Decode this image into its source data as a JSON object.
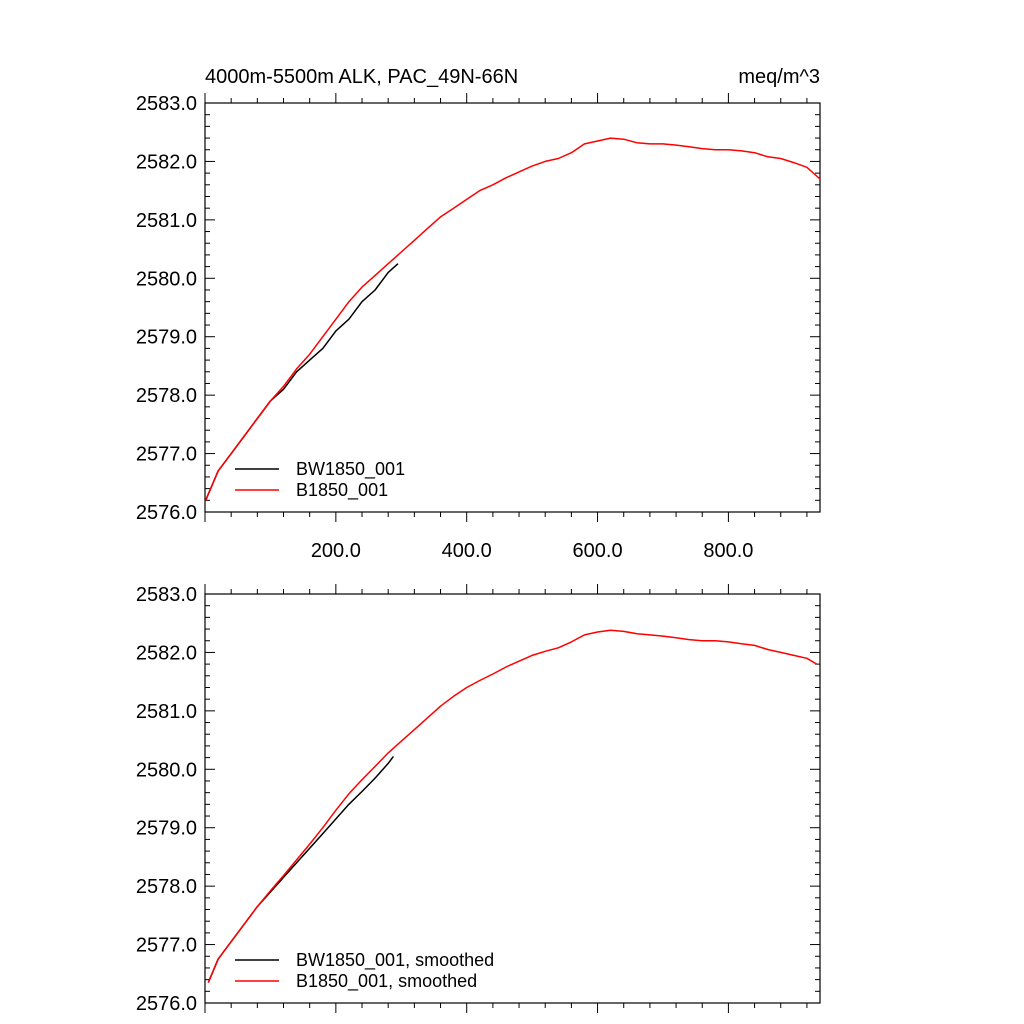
{
  "chart_data": [
    {
      "type": "line",
      "title": "4000m-5500m ALK, PAC_49N-66N",
      "units": "meq/m^3",
      "xlim": [
        0,
        940
      ],
      "ylim": [
        2576.0,
        2583.0
      ],
      "x_ticks": [
        "200.0",
        "400.0",
        "600.0",
        "800.0"
      ],
      "y_ticks": [
        "2576.0",
        "2577.0",
        "2578.0",
        "2579.0",
        "2580.0",
        "2581.0",
        "2582.0",
        "2583.0"
      ],
      "legend_position": "lower-left",
      "series": [
        {
          "name": "BW1850_001",
          "color": "#000000",
          "x": [
            1,
            20,
            40,
            60,
            80,
            100,
            120,
            140,
            160,
            180,
            200,
            220,
            240,
            260,
            280,
            295
          ],
          "y": [
            2576.2,
            2576.7,
            2577.0,
            2577.3,
            2577.6,
            2577.9,
            2578.1,
            2578.4,
            2578.6,
            2578.8,
            2579.1,
            2579.3,
            2579.6,
            2579.8,
            2580.1,
            2580.25
          ]
        },
        {
          "name": "B1850_001",
          "color": "#ff0000",
          "x": [
            1,
            20,
            40,
            60,
            80,
            100,
            120,
            140,
            160,
            180,
            200,
            220,
            240,
            260,
            280,
            300,
            320,
            340,
            360,
            380,
            400,
            420,
            440,
            460,
            480,
            500,
            520,
            540,
            560,
            580,
            600,
            620,
            640,
            660,
            680,
            700,
            720,
            740,
            760,
            780,
            800,
            820,
            840,
            860,
            880,
            900,
            920,
            940
          ],
          "y": [
            2576.2,
            2576.7,
            2577.0,
            2577.3,
            2577.6,
            2577.9,
            2578.15,
            2578.45,
            2578.7,
            2579.0,
            2579.3,
            2579.6,
            2579.85,
            2580.05,
            2580.25,
            2580.45,
            2580.65,
            2580.85,
            2581.05,
            2581.2,
            2581.35,
            2581.5,
            2581.6,
            2581.72,
            2581.82,
            2581.92,
            2582.0,
            2582.05,
            2582.15,
            2582.3,
            2582.35,
            2582.4,
            2582.38,
            2582.32,
            2582.3,
            2582.3,
            2582.28,
            2582.25,
            2582.22,
            2582.2,
            2582.2,
            2582.18,
            2582.15,
            2582.08,
            2582.05,
            2581.98,
            2581.9,
            2581.7
          ]
        }
      ]
    },
    {
      "type": "line",
      "title": "",
      "xlim": [
        0,
        940
      ],
      "ylim": [
        2576.0,
        2583.0
      ],
      "y_ticks": [
        "2576.0",
        "2577.0",
        "2578.0",
        "2579.0",
        "2580.0",
        "2581.0",
        "2582.0",
        "2583.0"
      ],
      "legend_position": "lower-left",
      "series": [
        {
          "name": "BW1850_001, smoothed",
          "color": "#000000",
          "x": [
            5,
            20,
            40,
            60,
            80,
            100,
            120,
            140,
            160,
            180,
            200,
            220,
            240,
            260,
            280,
            288
          ],
          "y": [
            2576.35,
            2576.75,
            2577.05,
            2577.35,
            2577.65,
            2577.9,
            2578.15,
            2578.4,
            2578.65,
            2578.9,
            2579.15,
            2579.4,
            2579.62,
            2579.85,
            2580.1,
            2580.22
          ]
        },
        {
          "name": "B1850_001, smoothed",
          "color": "#ff0000",
          "x": [
            5,
            20,
            40,
            60,
            80,
            100,
            120,
            140,
            160,
            180,
            200,
            220,
            240,
            260,
            280,
            300,
            320,
            340,
            360,
            380,
            400,
            420,
            440,
            460,
            480,
            500,
            520,
            540,
            560,
            580,
            600,
            620,
            640,
            660,
            680,
            700,
            720,
            740,
            760,
            780,
            800,
            820,
            840,
            860,
            880,
            900,
            920,
            935
          ],
          "y": [
            2576.35,
            2576.75,
            2577.05,
            2577.35,
            2577.65,
            2577.92,
            2578.18,
            2578.45,
            2578.72,
            2579.0,
            2579.3,
            2579.58,
            2579.82,
            2580.05,
            2580.28,
            2580.48,
            2580.68,
            2580.88,
            2581.08,
            2581.25,
            2581.4,
            2581.52,
            2581.63,
            2581.75,
            2581.85,
            2581.95,
            2582.02,
            2582.08,
            2582.18,
            2582.3,
            2582.35,
            2582.38,
            2582.36,
            2582.32,
            2582.3,
            2582.28,
            2582.25,
            2582.22,
            2582.2,
            2582.2,
            2582.18,
            2582.15,
            2582.12,
            2582.05,
            2582.0,
            2581.95,
            2581.9,
            2581.8
          ]
        }
      ]
    }
  ]
}
